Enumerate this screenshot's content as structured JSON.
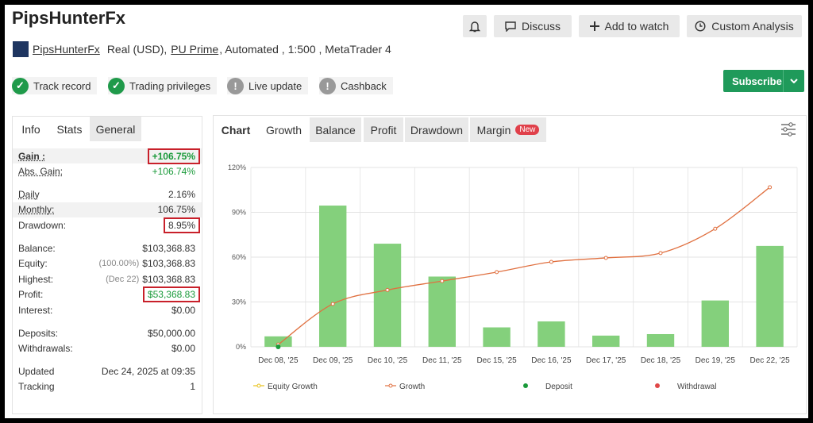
{
  "header": {
    "title": "PipsHunterFx",
    "account_name": "PipsHunterFx",
    "account_type": "Real (USD),",
    "broker": "PU Prime",
    "account_details": ", Automated , 1:500 , MetaTrader 4",
    "buttons": [
      "Discuss",
      "Add to watch",
      "Custom Analysis"
    ],
    "subscribe": "Subscribe"
  },
  "badges": [
    {
      "label": "Track record",
      "active": true
    },
    {
      "label": "Trading privileges",
      "active": true
    },
    {
      "label": "Live update",
      "active": false
    },
    {
      "label": "Cashback",
      "active": false
    }
  ],
  "stats": {
    "tabs": [
      "Info",
      "Stats",
      "General"
    ],
    "groups": [
      [
        {
          "label": "Gain :",
          "value": "+106.75%",
          "positive": true,
          "highlight": true,
          "dotted": true
        },
        {
          "label": "Abs. Gain:",
          "value": "+106.74%",
          "positive": true,
          "dotted": true
        }
      ],
      [
        {
          "label": "Daily",
          "value": "2.16%",
          "dotted": true
        },
        {
          "label": "Monthly:",
          "value": "106.75%",
          "dotted": true
        },
        {
          "label": "Drawdown:",
          "value": "8.95%",
          "highlight": true
        }
      ],
      [
        {
          "label": "Balance:",
          "value": "$103,368.83"
        },
        {
          "label": "Equity:",
          "note": "(100.00%)",
          "value": "$103,368.83"
        },
        {
          "label": "Highest:",
          "note": "(Dec 22)",
          "value": "$103,368.83"
        },
        {
          "label": "Profit:",
          "value": "$53,368.83",
          "positive": true,
          "highlight": true
        },
        {
          "label": "Interest:",
          "value": "$0.00"
        }
      ],
      [
        {
          "label": "Deposits:",
          "value": "$50,000.00"
        },
        {
          "label": "Withdrawals:",
          "value": "$0.00"
        }
      ],
      [
        {
          "label": "Updated",
          "value": "Dec 24, 2025 at 09:35"
        },
        {
          "label": "Tracking",
          "value": "1"
        }
      ]
    ]
  },
  "chart_tabs": {
    "tabs": [
      "Chart",
      "Growth",
      "Balance",
      "Profit",
      "Drawdown",
      "Margin"
    ],
    "new_badge": "New"
  },
  "chart_data": {
    "type": "bar",
    "categories": [
      "Dec 08, '25",
      "Dec 09, '25",
      "Dec 10, '25",
      "Dec 11, '25",
      "Dec 15, '25",
      "Dec 16, '25",
      "Dec 17, '25",
      "Dec 18, '25",
      "Dec 19, '25",
      "Dec 22, '25"
    ],
    "values": [
      7,
      94.5,
      69,
      47,
      13,
      17,
      7.5,
      8.5,
      31,
      67.5
    ],
    "color": "#84d07c",
    "growth": {
      "values": [
        1.5,
        28.7,
        38,
        44,
        50,
        56.8,
        59.5,
        62.7,
        79,
        106.75
      ],
      "color": "#e07040"
    },
    "deposits": [
      0,
      null,
      null,
      null,
      null,
      null,
      null,
      null,
      null,
      null
    ],
    "legend": [
      {
        "name": "Equity Growth",
        "color": "#e8c21a"
      },
      {
        "name": "Growth",
        "color": "#e07040"
      },
      {
        "name": "Deposit",
        "color": "#1a9a3a"
      },
      {
        "name": "Withdrawal",
        "color": "#e04848"
      }
    ],
    "ylim": [
      0,
      120
    ],
    "yticks": [
      {
        "value": 0,
        "label": "0%"
      },
      {
        "value": 30,
        "label": "30%"
      },
      {
        "value": 60,
        "label": "60%"
      },
      {
        "value": 90,
        "label": "90%"
      },
      {
        "value": 120,
        "label": "120%"
      }
    ],
    "grid": true
  }
}
